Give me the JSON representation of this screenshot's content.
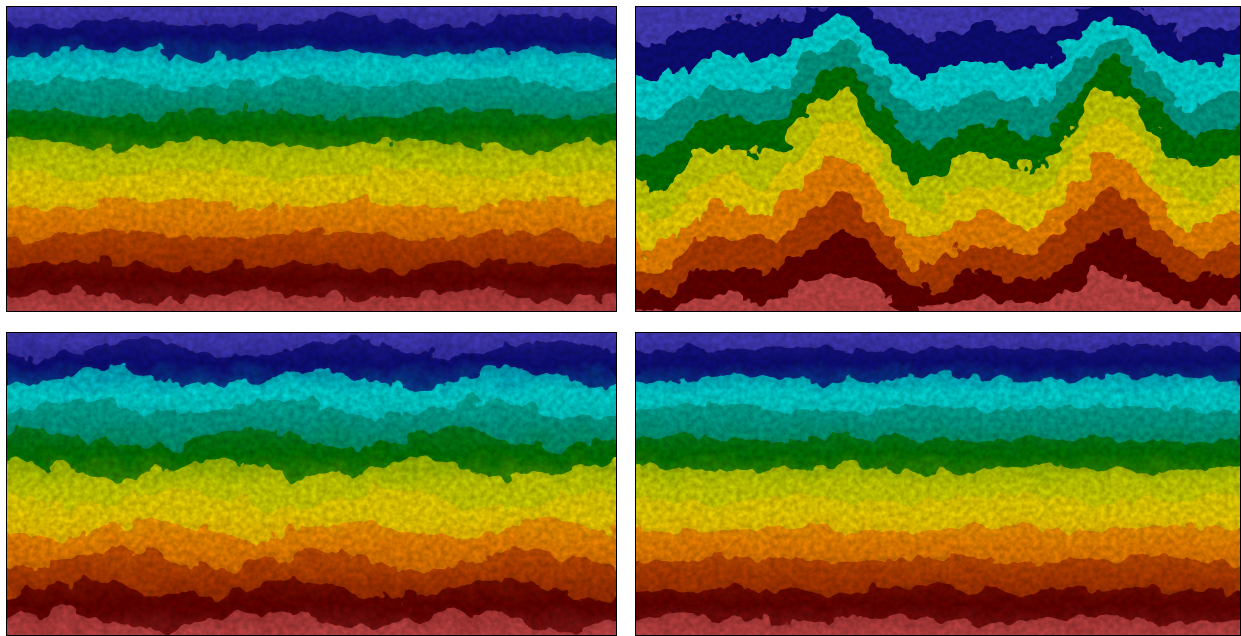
{
  "figure": {
    "panels": [
      {
        "id": "top-left",
        "pattern": "flat-bands",
        "amplitude": 0.015,
        "noise": 0.55
      },
      {
        "id": "top-right",
        "pattern": "wavy-bands",
        "amplitude": 0.13,
        "noise": 0.75
      },
      {
        "id": "bottom-left",
        "pattern": "flat-bands",
        "amplitude": 0.03,
        "noise": 0.65
      },
      {
        "id": "bottom-right",
        "pattern": "flat-bands",
        "amplitude": 0.01,
        "noise": 0.5
      }
    ],
    "colormap": [
      "#4a3fc9",
      "#0a0a80",
      "#00e5e5",
      "#00a890",
      "#007a00",
      "#d8e000",
      "#ffe000",
      "#ff8c00",
      "#c04000",
      "#6a0000",
      "#d04a4a"
    ]
  }
}
